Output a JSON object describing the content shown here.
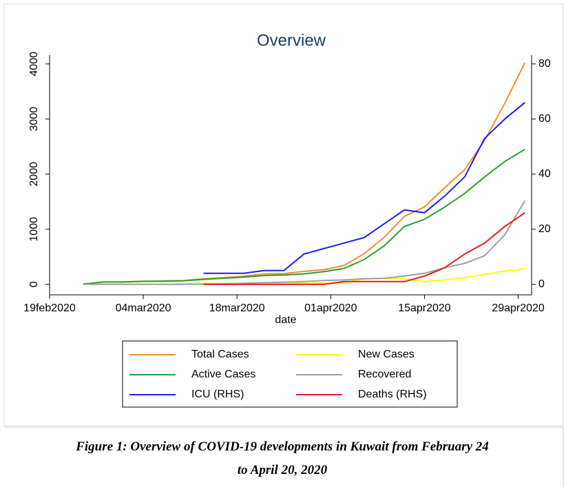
{
  "chart_data": {
    "type": "line",
    "title": "Overview",
    "xlabel": "date",
    "caption": "Figure 1: Overview of COVID-19 developments in Kuwait from February 24 to April 20, 2020",
    "x": [
      "2020-02-24",
      "2020-02-27",
      "2020-03-01",
      "2020-03-04",
      "2020-03-07",
      "2020-03-10",
      "2020-03-13",
      "2020-03-16",
      "2020-03-19",
      "2020-03-22",
      "2020-03-25",
      "2020-03-28",
      "2020-03-31",
      "2020-04-03",
      "2020-04-06",
      "2020-04-09",
      "2020-04-12",
      "2020-04-15",
      "2020-04-18",
      "2020-04-21",
      "2020-04-24",
      "2020-04-27",
      "2020-04-30"
    ],
    "xlim": [
      "2020-02-19",
      "2020-05-01"
    ],
    "xticks": [
      {
        "value": "2020-02-19",
        "label": "19feb2020"
      },
      {
        "value": "2020-03-04",
        "label": "04mar2020"
      },
      {
        "value": "2020-03-18",
        "label": "18mar2020"
      },
      {
        "value": "2020-04-01",
        "label": "01apr2020"
      },
      {
        "value": "2020-04-15",
        "label": "15apr2020"
      },
      {
        "value": "2020-04-29",
        "label": "29apr2020"
      }
    ],
    "ylim": [
      -190,
      4160
    ],
    "yticks": [
      0,
      1000,
      2000,
      3000,
      4000
    ],
    "y2lim": [
      -3.8,
      83.2
    ],
    "y2ticks": [
      0,
      20,
      40,
      60,
      80
    ],
    "series": [
      {
        "name": "Total Cases",
        "color": "#f28e2b",
        "values": [
          5,
          43,
          45,
          56,
          61,
          69,
          100,
          123,
          148,
          188,
          195,
          235,
          266,
          342,
          556,
          855,
          1234,
          1405,
          1751,
          2080,
          2614,
          3288,
          4024
        ]
      },
      {
        "name": "New Cases",
        "color": "#ffff00",
        "values": [
          5,
          5,
          2,
          4,
          3,
          5,
          20,
          10,
          15,
          30,
          10,
          25,
          20,
          30,
          100,
          110,
          100,
          50,
          80,
          120,
          180,
          240,
          280
        ]
      },
      {
        "name": "Active Cases",
        "color": "#2ca02c",
        "values": [
          5,
          42,
          43,
          54,
          58,
          65,
          90,
          110,
          130,
          160,
          170,
          190,
          230,
          290,
          450,
          700,
          1050,
          1180,
          1400,
          1650,
          1950,
          2230,
          2450
        ]
      },
      {
        "name": "Recovered",
        "color": "#9e9e9e",
        "values": [
          0,
          0,
          0,
          0,
          0,
          0,
          5,
          10,
          20,
          30,
          40,
          50,
          70,
          80,
          100,
          110,
          150,
          200,
          300,
          380,
          520,
          900,
          1520
        ]
      },
      {
        "name": "ICU (RHS)",
        "color": "#1a1aff",
        "axis": "y2",
        "values": [
          null,
          null,
          null,
          null,
          null,
          null,
          4,
          4,
          4,
          5,
          5,
          11,
          13,
          15,
          17,
          22,
          27,
          26,
          32,
          39,
          53,
          60,
          66
        ]
      },
      {
        "name": "Deaths (RHS)",
        "color": "#e41a1c",
        "axis": "y2",
        "values": [
          null,
          null,
          null,
          null,
          null,
          null,
          0,
          0,
          0,
          0,
          0,
          0,
          0,
          1,
          1,
          1,
          1,
          3,
          6,
          11,
          15,
          21,
          26
        ]
      }
    ]
  }
}
